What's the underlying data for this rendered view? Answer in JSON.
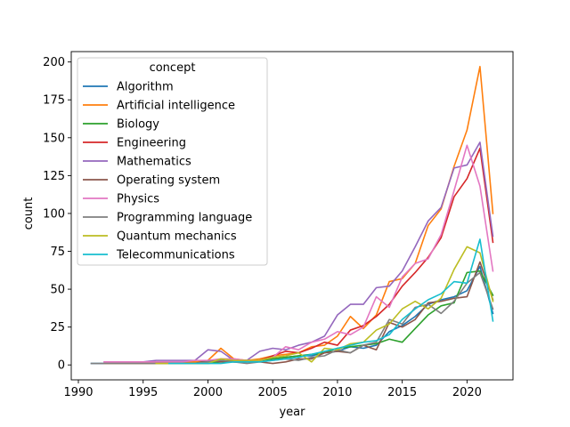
{
  "chart_data": {
    "type": "line",
    "xlabel": "year",
    "ylabel": "count",
    "xlim": [
      1989.45,
      2023.55
    ],
    "ylim": [
      -9.85,
      206.85
    ],
    "xticks": [
      1990,
      1995,
      2000,
      2005,
      2010,
      2015,
      2020
    ],
    "yticks": [
      0,
      25,
      50,
      75,
      100,
      125,
      150,
      175,
      200
    ],
    "grid": false,
    "legend": {
      "title": "concept",
      "placement": "upper-left"
    },
    "series": [
      {
        "name": "Algorithm",
        "color": "#1f77b4",
        "x": [
          1991,
          1992,
          1993,
          1994,
          1995,
          1996,
          1997,
          1998,
          1999,
          2000,
          2001,
          2002,
          2003,
          2004,
          2005,
          2006,
          2007,
          2008,
          2009,
          2010,
          2011,
          2012,
          2013,
          2014,
          2015,
          2016,
          2017,
          2018,
          2019,
          2020,
          2021,
          2022
        ],
        "y": [
          1,
          1,
          1,
          1,
          1,
          1,
          1,
          2,
          2,
          2,
          3,
          2,
          2,
          3,
          4,
          5,
          6,
          6,
          8,
          9,
          12,
          11,
          13,
          22,
          26,
          32,
          40,
          43,
          45,
          49,
          65,
          34
        ]
      },
      {
        "name": "Artificial intelligence",
        "color": "#ff7f0e",
        "x": [
          1992,
          1993,
          1994,
          1995,
          1996,
          1997,
          1998,
          1999,
          2000,
          2001,
          2002,
          2003,
          2004,
          2005,
          2006,
          2007,
          2008,
          2009,
          2010,
          2011,
          2012,
          2013,
          2014,
          2015,
          2016,
          2017,
          2018,
          2019,
          2020,
          2021,
          2022
        ],
        "y": [
          1,
          1,
          1,
          1,
          1,
          2,
          2,
          2,
          3,
          11,
          4,
          3,
          4,
          6,
          7,
          8,
          12,
          13,
          19,
          32,
          24,
          33,
          55,
          57,
          67,
          92,
          103,
          131,
          155,
          197,
          100
        ]
      },
      {
        "name": "Biology",
        "color": "#2ca02c",
        "x": [
          1996,
          1997,
          1998,
          1999,
          2000,
          2001,
          2002,
          2003,
          2004,
          2005,
          2006,
          2007,
          2008,
          2009,
          2010,
          2011,
          2012,
          2013,
          2014,
          2015,
          2016,
          2017,
          2018,
          2019,
          2020,
          2021,
          2022
        ],
        "y": [
          1,
          1,
          1,
          1,
          1,
          2,
          2,
          2,
          3,
          4,
          5,
          6,
          7,
          8,
          11,
          12,
          13,
          14,
          17,
          15,
          24,
          33,
          39,
          41,
          61,
          62,
          46
        ]
      },
      {
        "name": "Engineering",
        "color": "#d62728",
        "x": [
          1998,
          1999,
          2000,
          2001,
          2002,
          2003,
          2004,
          2005,
          2006,
          2007,
          2008,
          2009,
          2010,
          2011,
          2012,
          2013,
          2014,
          2015,
          2016,
          2017,
          2018,
          2019,
          2020,
          2021,
          2022
        ],
        "y": [
          1,
          1,
          2,
          3,
          2,
          2,
          3,
          6,
          9,
          8,
          11,
          15,
          13,
          23,
          26,
          32,
          40,
          52,
          61,
          71,
          84,
          111,
          123,
          143,
          81
        ]
      },
      {
        "name": "Mathematics",
        "color": "#9467bd",
        "x": [
          1992,
          1993,
          1994,
          1995,
          1996,
          1997,
          1998,
          1999,
          2000,
          2001,
          2002,
          2003,
          2004,
          2005,
          2006,
          2007,
          2008,
          2009,
          2010,
          2011,
          2012,
          2013,
          2014,
          2015,
          2016,
          2017,
          2018,
          2019,
          2020,
          2021,
          2022
        ],
        "y": [
          2,
          2,
          2,
          2,
          3,
          3,
          3,
          3,
          10,
          9,
          3,
          3,
          9,
          11,
          10,
          13,
          15,
          19,
          33,
          40,
          40,
          51,
          52,
          62,
          78,
          95,
          104,
          130,
          132,
          147,
          85
        ]
      },
      {
        "name": "Operating system",
        "color": "#8c564b",
        "x": [
          1996,
          1997,
          1998,
          1999,
          2000,
          2001,
          2002,
          2003,
          2004,
          2005,
          2006,
          2007,
          2008,
          2009,
          2010,
          2011,
          2012,
          2013,
          2014,
          2015,
          2016,
          2017,
          2018,
          2019,
          2020,
          2021,
          2022
        ],
        "y": [
          1,
          1,
          1,
          1,
          3,
          2,
          3,
          3,
          2,
          1,
          2,
          4,
          4,
          8,
          9,
          8,
          13,
          10,
          28,
          25,
          30,
          41,
          42,
          44,
          45,
          68,
          43
        ]
      },
      {
        "name": "Physics",
        "color": "#e377c2",
        "x": [
          1992,
          1993,
          1994,
          1995,
          1996,
          1997,
          1998,
          1999,
          2000,
          2001,
          2002,
          2003,
          2004,
          2005,
          2006,
          2007,
          2008,
          2009,
          2010,
          2011,
          2012,
          2013,
          2014,
          2015,
          2016,
          2017,
          2018,
          2019,
          2020,
          2021,
          2022
        ],
        "y": [
          2,
          2,
          2,
          2,
          2,
          2,
          2,
          3,
          3,
          4,
          4,
          3,
          3,
          5,
          12,
          10,
          15,
          17,
          22,
          20,
          25,
          45,
          38,
          58,
          67,
          70,
          86,
          115,
          145,
          118,
          62
        ]
      },
      {
        "name": "Programming language",
        "color": "#7f7f7f",
        "x": [
          1991,
          1992,
          1993,
          1994,
          1995,
          1996,
          1997,
          1998,
          1999,
          2000,
          2001,
          2002,
          2003,
          2004,
          2005,
          2006,
          2007,
          2008,
          2009,
          2010,
          2011,
          2012,
          2013,
          2014,
          2015,
          2016,
          2017,
          2018,
          2019,
          2020,
          2021,
          2022
        ],
        "y": [
          1,
          1,
          1,
          1,
          1,
          1,
          1,
          1,
          1,
          2,
          3,
          2,
          1,
          2,
          3,
          4,
          3,
          5,
          6,
          10,
          8,
          13,
          15,
          30,
          27,
          38,
          40,
          34,
          42,
          54,
          61,
          37
        ]
      },
      {
        "name": "Quantum mechanics",
        "color": "#bcbd22",
        "x": [
          1996,
          1997,
          1998,
          1999,
          2000,
          2001,
          2002,
          2003,
          2004,
          2005,
          2006,
          2007,
          2008,
          2009,
          2010,
          2011,
          2012,
          2013,
          2014,
          2015,
          2016,
          2017,
          2018,
          2019,
          2020,
          2021,
          2022
        ],
        "y": [
          1,
          1,
          1,
          1,
          1,
          4,
          3,
          3,
          3,
          5,
          6,
          8,
          2,
          11,
          10,
          14,
          15,
          23,
          27,
          37,
          42,
          37,
          44,
          63,
          78,
          74,
          42
        ]
      },
      {
        "name": "Telecommunications",
        "color": "#17becf",
        "x": [
          1997,
          1998,
          1999,
          2000,
          2001,
          2002,
          2003,
          2004,
          2005,
          2006,
          2007,
          2008,
          2009,
          2010,
          2011,
          2012,
          2013,
          2014,
          2015,
          2016,
          2017,
          2018,
          2019,
          2020,
          2021,
          2022
        ],
        "y": [
          1,
          1,
          1,
          1,
          1,
          2,
          2,
          2,
          3,
          4,
          5,
          7,
          9,
          11,
          13,
          15,
          16,
          20,
          30,
          37,
          43,
          47,
          55,
          54,
          83,
          29
        ]
      }
    ]
  }
}
